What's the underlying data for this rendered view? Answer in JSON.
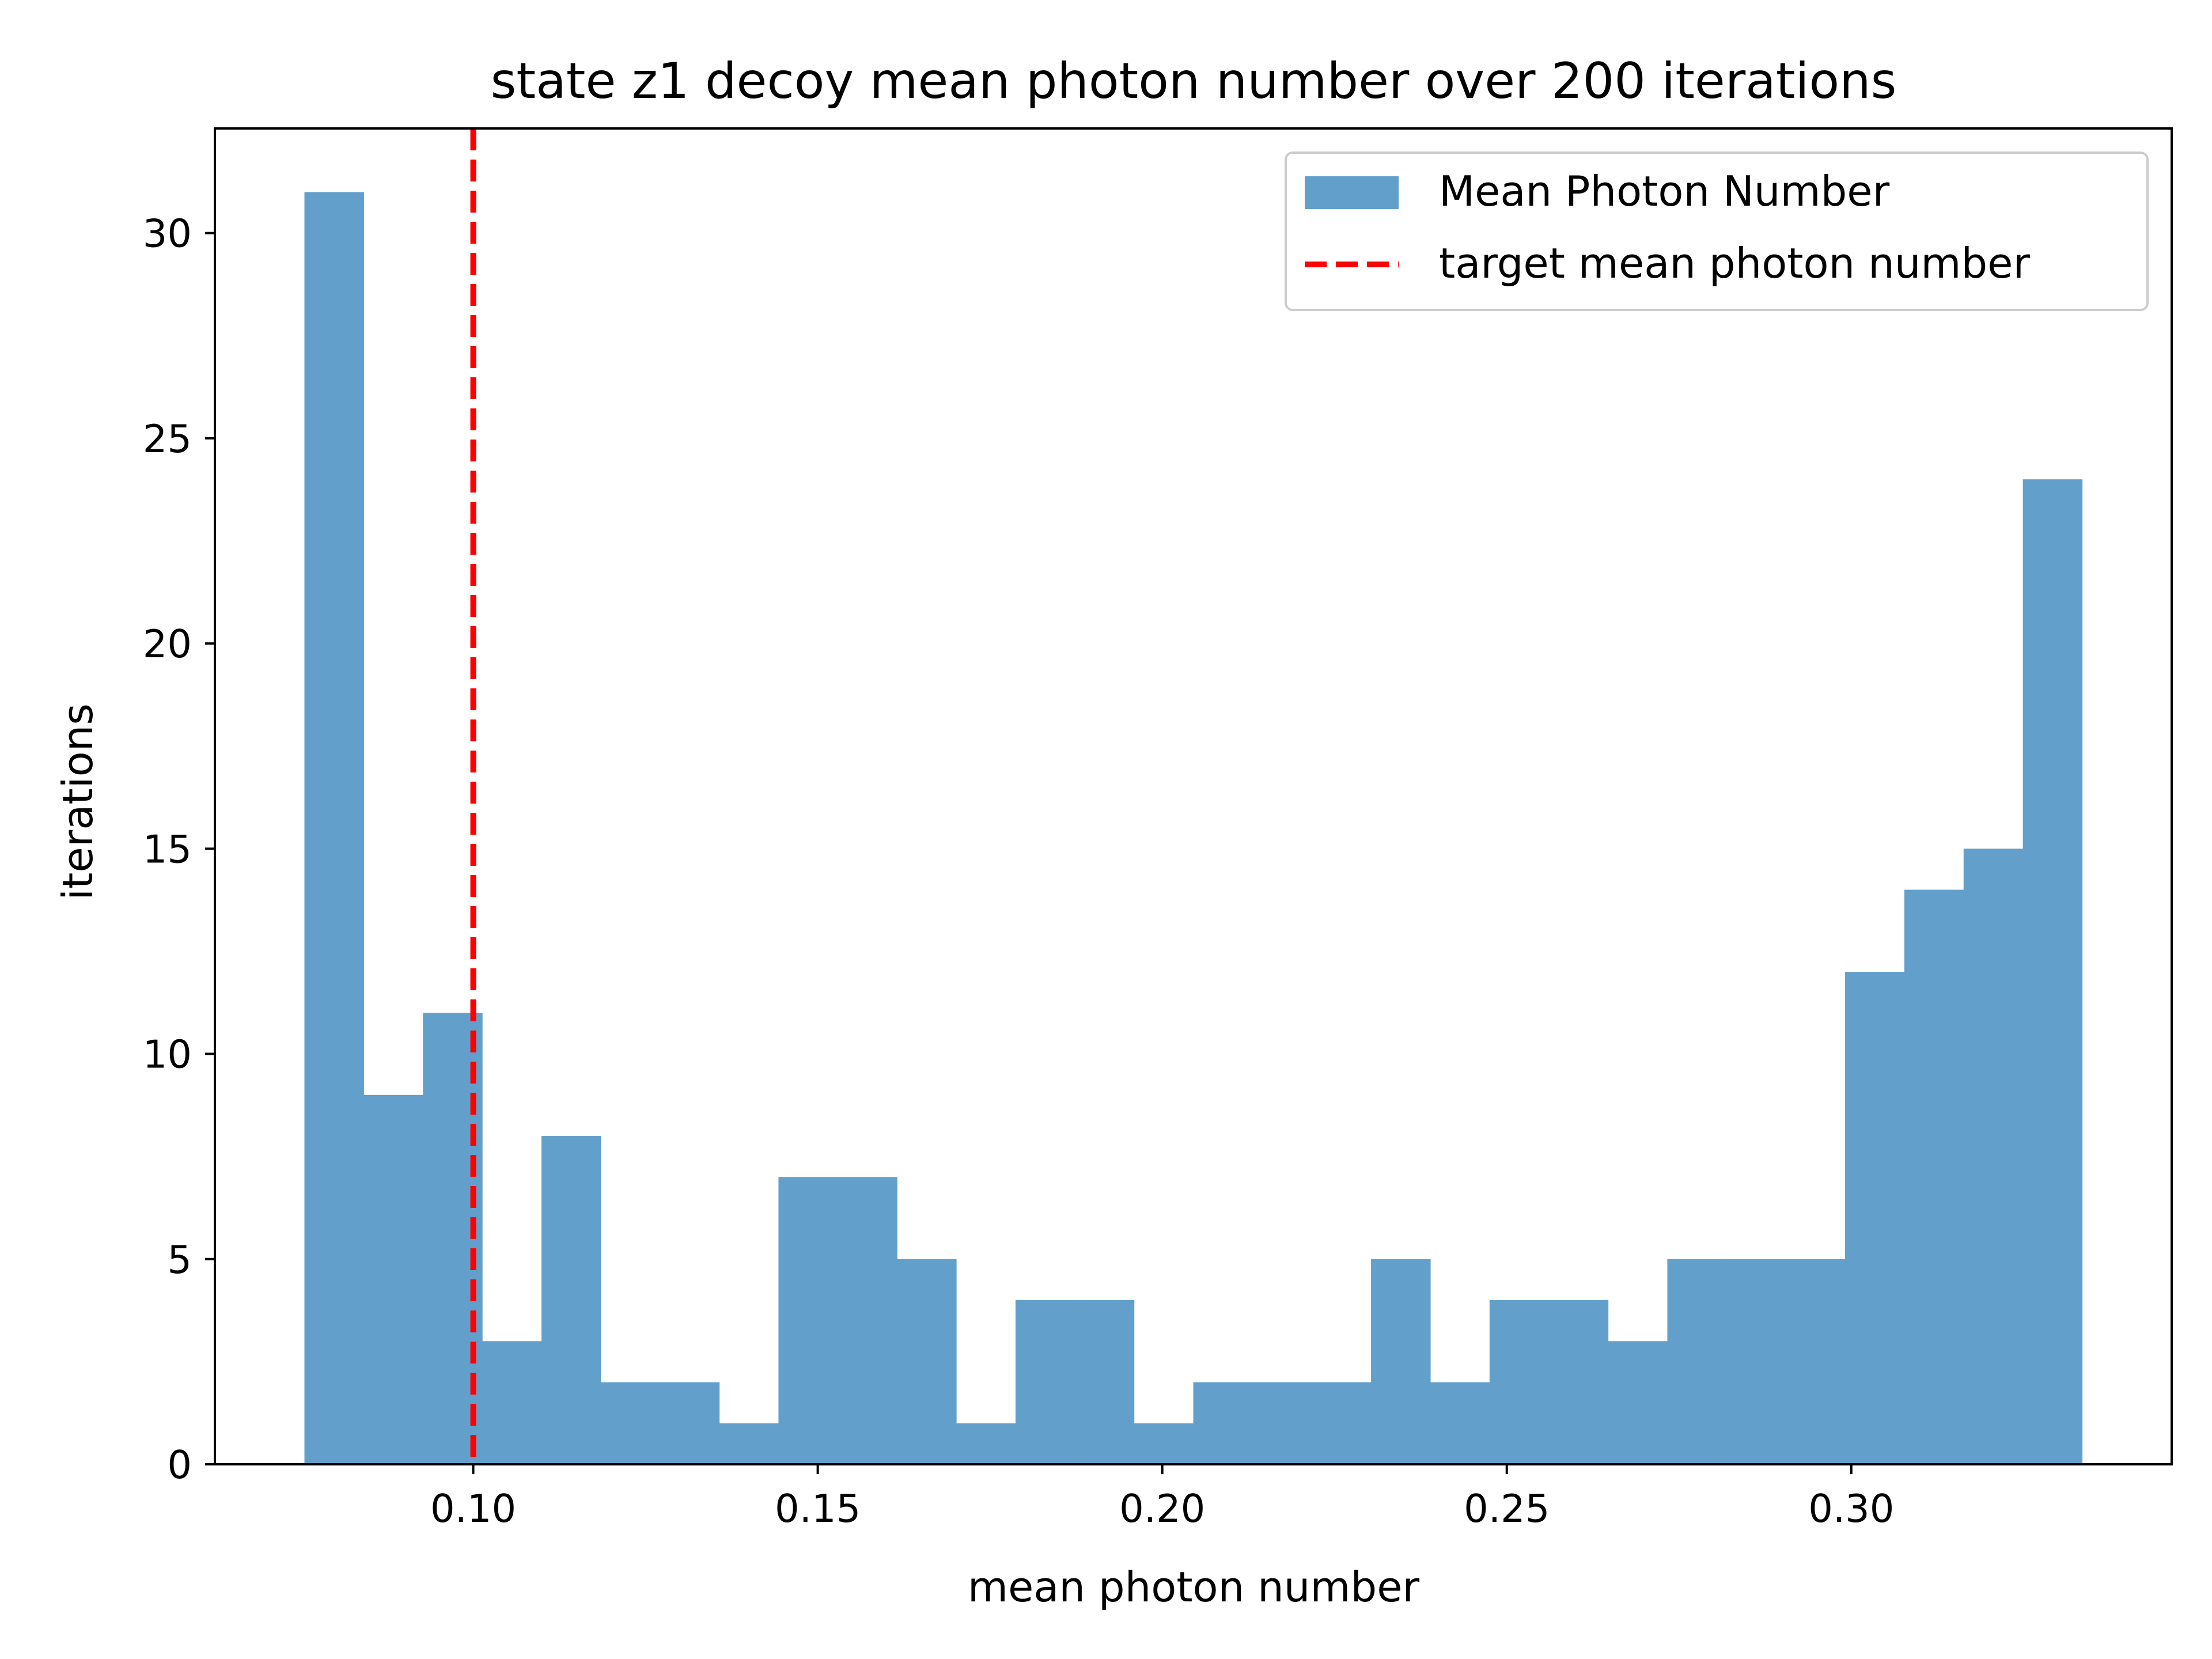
{
  "chart_data": {
    "type": "bar",
    "title": "state z1 decoy mean photon number over 200 iterations",
    "xlabel": "mean photon number",
    "ylabel": "iterations",
    "xlim": [
      0.0625,
      0.3465
    ],
    "ylim": [
      0,
      32.55
    ],
    "xticks": [
      0.1,
      0.15,
      0.2,
      0.25,
      0.3
    ],
    "xtick_labels": [
      "0.10",
      "0.15",
      "0.20",
      "0.25",
      "0.30"
    ],
    "yticks": [
      0,
      5,
      10,
      15,
      20,
      25,
      30
    ],
    "ytick_labels": [
      "0",
      "5",
      "10",
      "15",
      "20",
      "25",
      "30"
    ],
    "grid": false,
    "legend_position": "top-right",
    "bin_edges": [
      0.0755,
      0.0841,
      0.0927,
      0.1013,
      0.1099,
      0.1185,
      0.1271,
      0.1357,
      0.1443,
      0.1529,
      0.1615,
      0.1701,
      0.1787,
      0.1873,
      0.1959,
      0.2045,
      0.2131,
      0.2217,
      0.2303,
      0.2389,
      0.2475,
      0.2561,
      0.2647,
      0.2733,
      0.2819,
      0.2905,
      0.2991,
      0.3077,
      0.3163,
      0.3249,
      0.3335
    ],
    "series": [
      {
        "name": "Mean Photon Number",
        "color": "#62a0cb",
        "values": [
          31,
          9,
          11,
          3,
          8,
          2,
          2,
          1,
          7,
          7,
          5,
          1,
          4,
          4,
          1,
          2,
          2,
          2,
          5,
          2,
          4,
          4,
          3,
          5,
          5,
          5,
          12,
          14,
          15,
          24
        ]
      }
    ],
    "reference_line": {
      "name": "target mean photon number",
      "x": 0.1,
      "color": "#ff0000",
      "style": "dashed"
    }
  }
}
